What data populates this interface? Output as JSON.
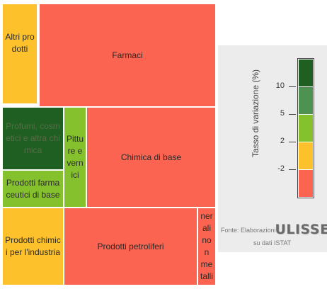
{
  "chart_data": {
    "type": "treemap",
    "items": [
      {
        "label": "Altri prodotti",
        "color": "#fdc22b"
      },
      {
        "label": "Farmaci",
        "color": "#fa6450"
      },
      {
        "label": "Profumi, cosmetici e altra chimica",
        "color": "#205f22"
      },
      {
        "label": "Pitture e vernici",
        "color": "#84c12d"
      },
      {
        "label": "Chimica di base",
        "color": "#fa6450"
      },
      {
        "label": "Prodotti farmaceutici di base",
        "color": "#84c12d"
      },
      {
        "label": "Prodotti chimici per l'industria",
        "color": "#fdc22b"
      },
      {
        "label": "Prodotti petroliferi",
        "color": "#fa6450"
      },
      {
        "label": "Minerali non metalliferi",
        "color": "#fa6450"
      }
    ],
    "legend": {
      "title": "Tasso di variazione (%)",
      "ticks": [
        "10",
        "5",
        "2",
        "-2"
      ],
      "colors": [
        "#205f22",
        "#4f9150",
        "#84c12d",
        "#fdc22b",
        "#fa6450"
      ]
    }
  },
  "source": {
    "line1": "Fonte: Elaborazioni",
    "logo": "ULISSE",
    "line2": "su dati ISTAT"
  }
}
